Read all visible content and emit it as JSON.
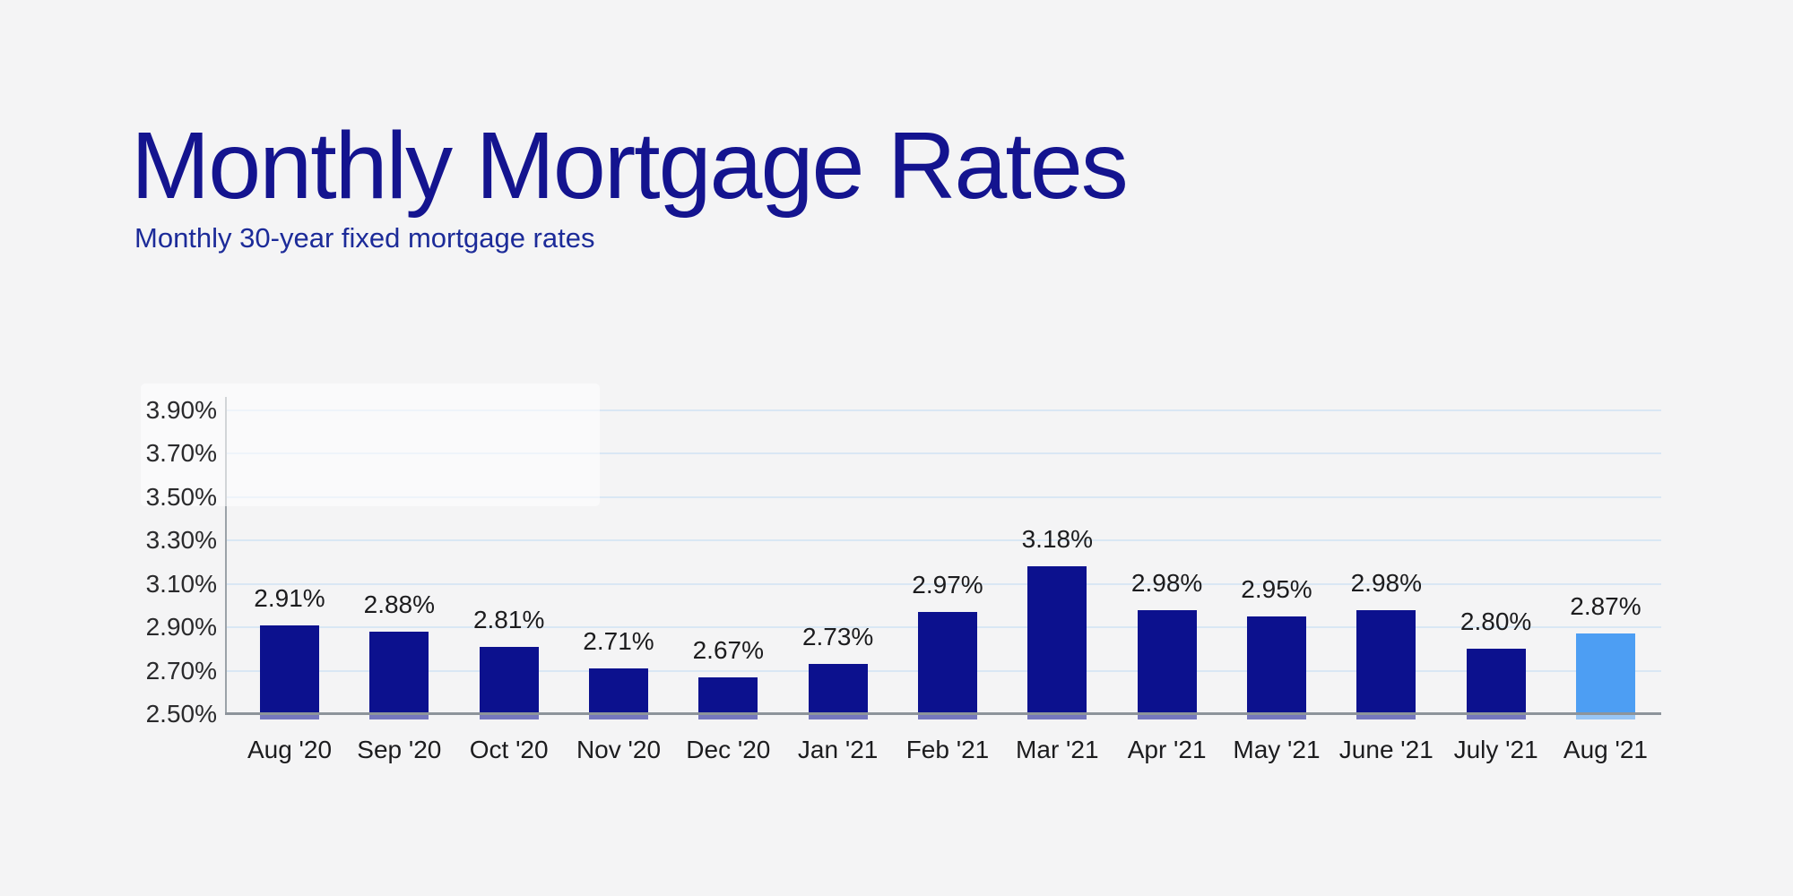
{
  "page": {
    "background_color": "#f4f4f5"
  },
  "header": {
    "title": "Monthly Mortgage Rates",
    "subtitle": "Monthly 30-year fixed mortgage rates",
    "title_color": "#14148f",
    "subtitle_color": "#1c2b99"
  },
  "chart_data": {
    "type": "bar",
    "title": "Monthly Mortgage Rates",
    "subtitle": "Monthly 30-year fixed mortgage rates",
    "categories": [
      "Aug '20",
      "Sep '20",
      "Oct '20",
      "Nov '20",
      "Dec '20",
      "Jan '21",
      "Feb '21",
      "Mar '21",
      "Apr '21",
      "May '21",
      "June '21",
      "July '21",
      "Aug '21"
    ],
    "values": [
      2.91,
      2.88,
      2.81,
      2.71,
      2.67,
      2.73,
      2.97,
      3.18,
      2.98,
      2.95,
      2.98,
      2.8,
      2.87
    ],
    "value_labels": [
      "2.91%",
      "2.88%",
      "2.81%",
      "2.71%",
      "2.67%",
      "2.73%",
      "2.97%",
      "3.18%",
      "2.98%",
      "2.95%",
      "2.98%",
      "2.80%",
      "2.87%"
    ],
    "highlight_index": 12,
    "xlabel": "",
    "ylabel": "",
    "ylim": [
      2.5,
      3.9
    ],
    "y_ticks": [
      "3.90%",
      "3.70%",
      "3.50%",
      "3.30%",
      "3.10%",
      "2.90%",
      "2.70%",
      "2.50%"
    ],
    "y_tick_values": [
      3.9,
      3.7,
      3.5,
      3.3,
      3.1,
      2.9,
      2.7,
      2.5
    ],
    "grid": true,
    "legend": "none",
    "colors": {
      "bar_primary": "#0c118e",
      "bar_highlight": "#4d9ef3",
      "gridline": "#d9e7f4",
      "axis_line_vertical": "#9ba2a8",
      "axis_line_baseline": "#8d949b",
      "tick_label": "#2a2a2c",
      "value_label": "#1c1c1e",
      "category_label": "#1c1c1e"
    }
  }
}
